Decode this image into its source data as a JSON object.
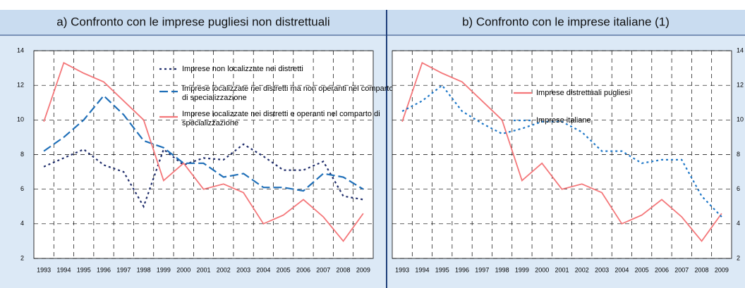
{
  "chart_data": [
    {
      "type": "line",
      "title": "a) Confronto con le imprese pugliesi non distrettuali",
      "categories": [
        "1993",
        "1994",
        "1995",
        "1996",
        "1997",
        "1998",
        "1999",
        "2000",
        "2001",
        "2002",
        "2003",
        "2004",
        "2005",
        "2006",
        "2007",
        "2008",
        "2009"
      ],
      "ylim": [
        2,
        14
      ],
      "yticks": [
        2,
        4,
        6,
        8,
        10,
        12,
        14
      ],
      "grid": true,
      "series": [
        {
          "name": "Imprese non localizzate nei distretti",
          "color": "#1f2d6b",
          "style": "dotted",
          "values": [
            7.3,
            7.8,
            8.3,
            7.4,
            7.0,
            5.0,
            8.3,
            7.4,
            7.8,
            7.7,
            8.6,
            7.9,
            7.1,
            7.1,
            7.6,
            5.6,
            5.4
          ]
        },
        {
          "name": "Imprese localizzate nei distretti ma non operanti nel comparto di specializzazione",
          "color": "#1f6fb8",
          "style": "dashed",
          "values": [
            8.2,
            9.0,
            10.0,
            11.4,
            10.3,
            8.8,
            8.4,
            7.5,
            7.5,
            6.7,
            6.9,
            6.1,
            6.1,
            5.9,
            6.9,
            6.7,
            6.0
          ]
        },
        {
          "name": "Imprese localizzate nei distretti e operanti nel comparto di specializzazione",
          "color": "#f4777a",
          "style": "solid",
          "values": [
            9.9,
            13.3,
            12.7,
            12.2,
            11.1,
            10.0,
            6.5,
            7.5,
            6.0,
            6.3,
            5.8,
            4.0,
            4.5,
            5.4,
            4.4,
            3.0,
            4.6
          ]
        }
      ]
    },
    {
      "type": "line",
      "title": "b) Confronto con le imprese italiane (1)",
      "categories": [
        "1993",
        "1994",
        "1995",
        "1996",
        "1997",
        "1998",
        "1999",
        "2000",
        "2001",
        "2002",
        "2003",
        "2004",
        "2005",
        "2006",
        "2007",
        "2008",
        "2009"
      ],
      "ylim": [
        2,
        14
      ],
      "yticks": [
        2,
        4,
        6,
        8,
        10,
        12,
        14
      ],
      "grid": true,
      "series": [
        {
          "name": "Imprese distrettuali pugliesi",
          "color": "#f4777a",
          "style": "solid",
          "values": [
            9.9,
            13.3,
            12.7,
            12.2,
            11.1,
            10.0,
            6.5,
            7.5,
            6.0,
            6.3,
            5.8,
            4.0,
            4.5,
            5.4,
            4.4,
            3.0,
            4.6
          ]
        },
        {
          "name": "Imprese italiane",
          "color": "#1f78c8",
          "style": "dotted",
          "values": [
            10.5,
            11.1,
            12.0,
            10.5,
            9.8,
            9.2,
            9.5,
            9.9,
            9.9,
            9.3,
            8.2,
            8.2,
            7.5,
            7.7,
            7.7,
            5.6,
            4.4
          ]
        }
      ]
    }
  ]
}
